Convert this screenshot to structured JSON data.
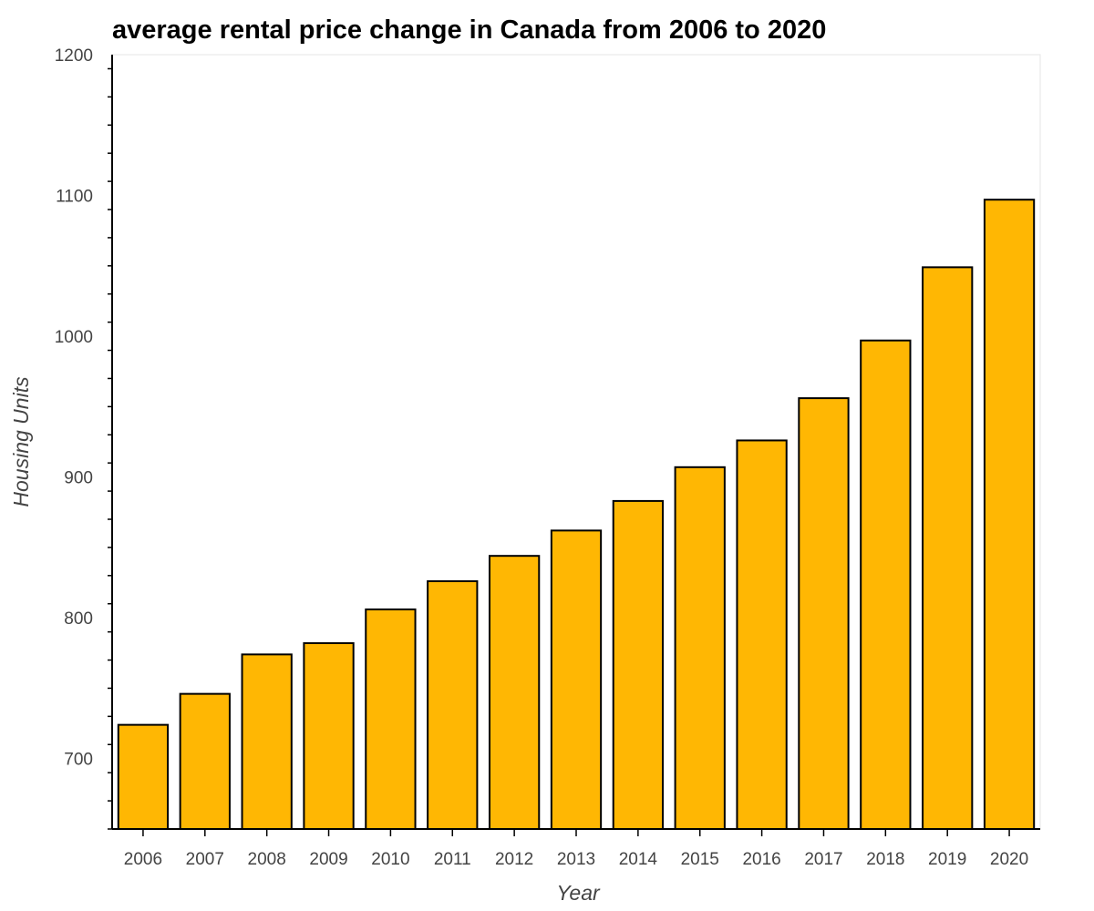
{
  "chart_data": {
    "type": "bar",
    "title": "average rental price change in Canada from 2006 to 2020",
    "xlabel": "Year",
    "ylabel": "Housing Units",
    "categories": [
      "2006",
      "2007",
      "2008",
      "2009",
      "2010",
      "2011",
      "2012",
      "2013",
      "2014",
      "2015",
      "2016",
      "2017",
      "2018",
      "2019",
      "2020"
    ],
    "values": [
      724,
      746,
      774,
      782,
      806,
      826,
      844,
      862,
      883,
      907,
      926,
      956,
      997,
      1049,
      1097
    ],
    "ylim": [
      650,
      1200
    ],
    "yticks": [
      700,
      800,
      900,
      1000,
      1100,
      1200
    ],
    "grid": false,
    "legend": "none",
    "colors": {
      "bar": "#FFB703",
      "bar_outline": "#000000",
      "frame": "#e5e5e5",
      "axis": "#000000",
      "text": "#444444"
    }
  }
}
